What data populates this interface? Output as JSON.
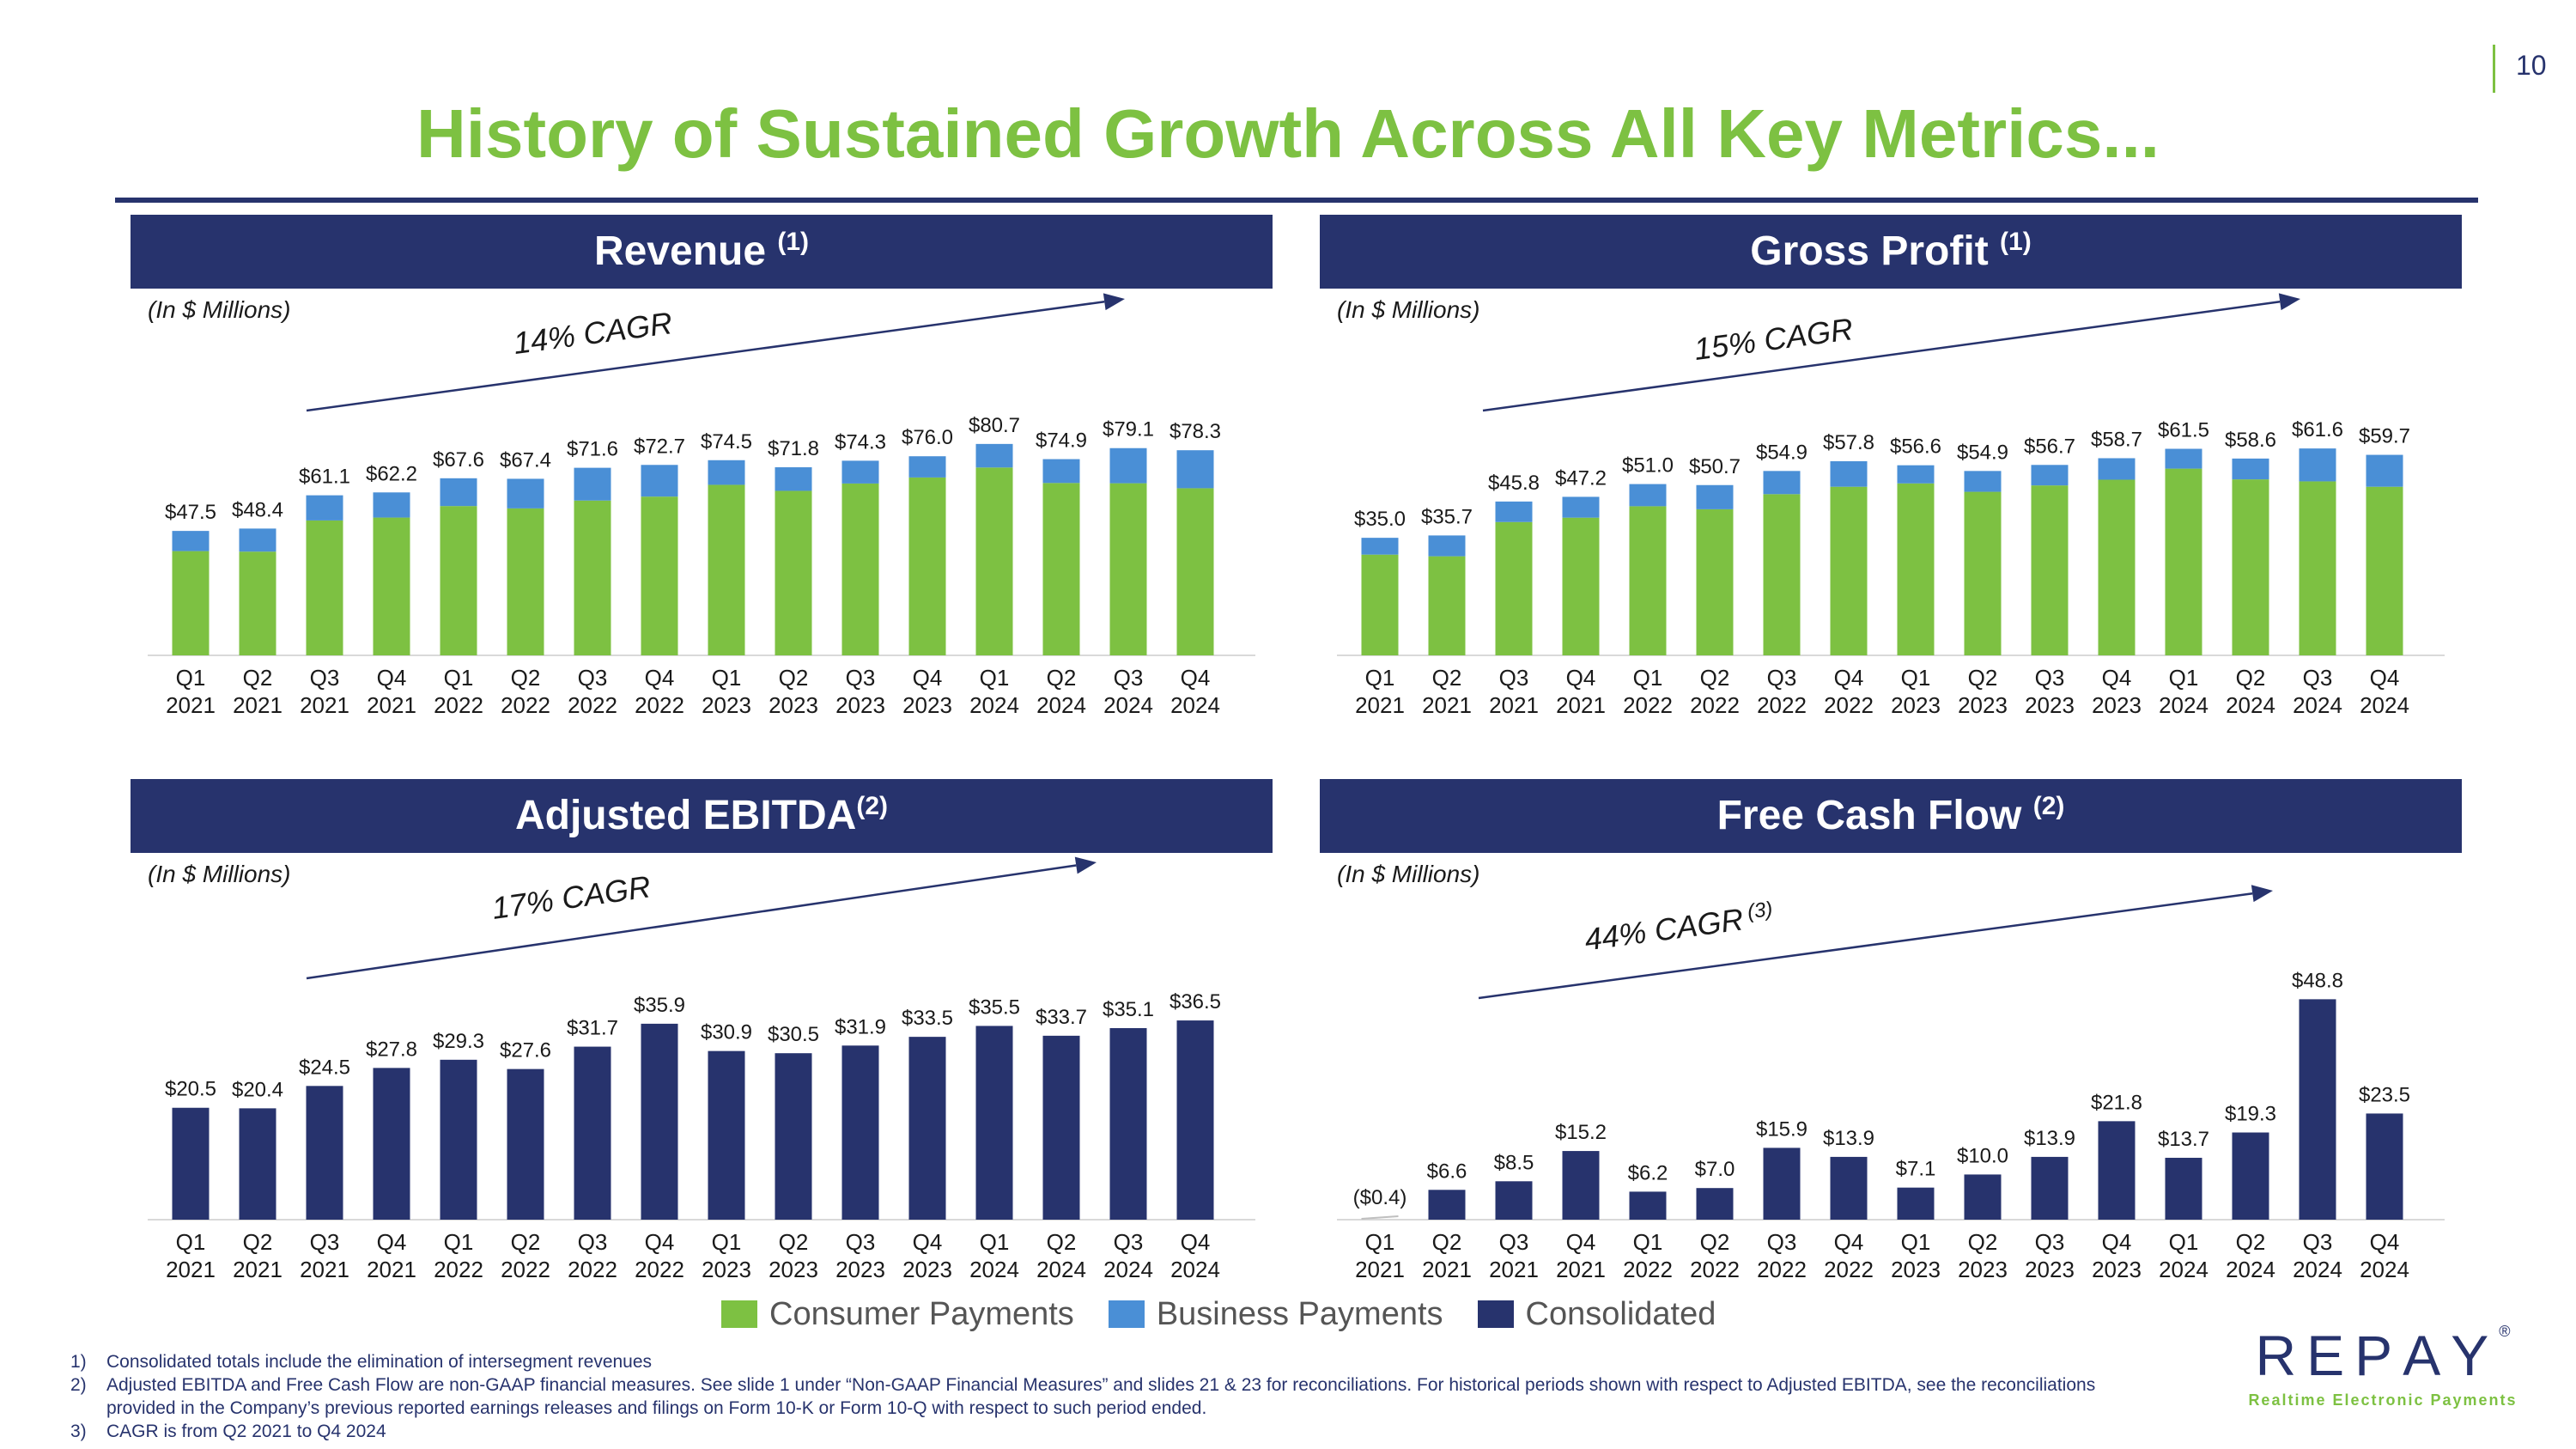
{
  "page_number": "10",
  "title": "History of Sustained Growth Across All Key Metrics...",
  "colors": {
    "consumer": "#7dc142",
    "business": "#4a8fd6",
    "consolidated": "#27336d",
    "header_bg": "#27336d",
    "title": "#7dc142"
  },
  "legend": {
    "consumer": "Consumer Payments",
    "business": "Business Payments",
    "consolidated": "Consolidated"
  },
  "footnotes": [
    {
      "num": "1)",
      "text": "Consolidated totals include the elimination of intersegment revenues"
    },
    {
      "num": "2)",
      "text": "Adjusted EBITDA and Free Cash Flow are non-GAAP financial measures.  See slide 1 under “Non-GAAP Financial Measures” and slides 21 & 23 for reconciliations. For historical periods shown with respect to Adjusted EBITDA, see the reconciliations provided in the Company’s previous reported earnings releases and filings on Form 10-K or Form 10-Q with respect to such period ended."
    },
    {
      "num": "3)",
      "text": "CAGR is from Q2 2021 to Q4 2024"
    }
  ],
  "logo": {
    "letters": [
      "R",
      "E",
      "P",
      "A",
      "Y"
    ],
    "registered": "®",
    "tagline": "Realtime Electronic Payments"
  },
  "chart_data": [
    {
      "id": "revenue",
      "type": "bar",
      "stacked": true,
      "title": "Revenue",
      "title_note": "(1)",
      "units_label": "(In $ Millions)",
      "cagr_label": "14% CAGR",
      "cagr_note": "",
      "categories": [
        "Q1 2021",
        "Q2 2021",
        "Q3 2021",
        "Q4 2021",
        "Q1 2022",
        "Q2 2022",
        "Q3 2022",
        "Q4 2022",
        "Q1 2023",
        "Q2 2023",
        "Q3 2023",
        "Q4 2023",
        "Q1 2024",
        "Q2 2024",
        "Q3 2024",
        "Q4 2024"
      ],
      "series": [
        {
          "name": "Consumer Payments",
          "values": [
            39.8,
            39.6,
            51.5,
            52.6,
            57.0,
            56.1,
            59.1,
            60.6,
            65.1,
            62.8,
            65.6,
            67.9,
            71.7,
            65.8,
            65.7,
            63.8
          ]
        },
        {
          "name": "Business Payments",
          "values": [
            7.7,
            8.8,
            9.6,
            9.6,
            10.6,
            11.3,
            12.5,
            12.1,
            9.4,
            9.0,
            8.7,
            8.1,
            9.0,
            9.1,
            13.4,
            14.5
          ]
        }
      ],
      "totals": [
        47.5,
        48.4,
        61.1,
        62.2,
        67.6,
        67.4,
        71.6,
        72.7,
        74.5,
        71.8,
        74.3,
        76.0,
        80.7,
        74.9,
        79.1,
        78.3
      ],
      "labels": [
        "$47.5",
        "$48.4",
        "$61.1",
        "$62.2",
        "$67.6",
        "$67.4",
        "$71.6",
        "$72.7",
        "$74.5",
        "$71.8",
        "$74.3",
        "$76.0",
        "$80.7",
        "$74.9",
        "$79.1",
        "$78.3"
      ],
      "ylim": [
        0,
        100
      ]
    },
    {
      "id": "gross-profit",
      "type": "bar",
      "stacked": true,
      "title": "Gross Profit",
      "title_note": "(1)",
      "units_label": "(In $ Millions)",
      "cagr_label": "15% CAGR",
      "cagr_note": "",
      "categories": [
        "Q1 2021",
        "Q2 2021",
        "Q3 2021",
        "Q4 2021",
        "Q1 2022",
        "Q2 2022",
        "Q3 2022",
        "Q4 2022",
        "Q1 2023",
        "Q2 2023",
        "Q3 2023",
        "Q4 2023",
        "Q1 2024",
        "Q2 2024",
        "Q3 2024",
        "Q4 2024"
      ],
      "series": [
        {
          "name": "Consumer Payments",
          "values": [
            30.0,
            29.5,
            39.7,
            41.0,
            44.4,
            43.5,
            48.0,
            50.2,
            51.2,
            48.7,
            50.6,
            52.3,
            55.6,
            52.4,
            51.8,
            50.2
          ]
        },
        {
          "name": "Business Payments",
          "values": [
            5.0,
            6.2,
            6.1,
            6.2,
            6.6,
            7.2,
            6.9,
            7.6,
            5.4,
            6.2,
            6.1,
            6.4,
            5.9,
            6.2,
            9.8,
            9.5
          ]
        }
      ],
      "totals": [
        35.0,
        35.7,
        45.8,
        47.2,
        51.0,
        50.7,
        54.9,
        57.8,
        56.6,
        54.9,
        56.7,
        58.7,
        61.5,
        58.6,
        61.6,
        59.7
      ],
      "labels": [
        "$35.0",
        "$35.7",
        "$45.8",
        "$47.2",
        "$51.0",
        "$50.7",
        "$54.9",
        "$57.8",
        "$56.6",
        "$54.9",
        "$56.7",
        "$58.7",
        "$61.5",
        "$58.6",
        "$61.6",
        "$59.7"
      ],
      "ylim": [
        0,
        78
      ]
    },
    {
      "id": "adjusted-ebitda",
      "type": "bar",
      "stacked": false,
      "title": "Adjusted EBITDA",
      "title_note": "(2)",
      "units_label": "(In $ Millions)",
      "cagr_label": "17% CAGR",
      "cagr_note": "",
      "categories": [
        "Q1 2021",
        "Q2 2021",
        "Q3 2021",
        "Q4 2021",
        "Q1 2022",
        "Q2 2022",
        "Q3 2022",
        "Q4 2022",
        "Q1 2023",
        "Q2 2023",
        "Q3 2023",
        "Q4 2023",
        "Q1 2024",
        "Q2 2024",
        "Q3 2024",
        "Q4 2024"
      ],
      "series": [
        {
          "name": "Consolidated",
          "values": [
            20.5,
            20.4,
            24.5,
            27.8,
            29.3,
            27.6,
            31.7,
            35.9,
            30.9,
            30.5,
            31.9,
            33.5,
            35.5,
            33.7,
            35.1,
            36.5
          ]
        }
      ],
      "labels": [
        "$20.5",
        "$20.4",
        "$24.5",
        "$27.8",
        "$29.3",
        "$27.6",
        "$31.7",
        "$35.9",
        "$30.9",
        "$30.5",
        "$31.9",
        "$33.5",
        "$35.5",
        "$33.7",
        "$35.1",
        "$36.5"
      ],
      "ylim": [
        0,
        48
      ]
    },
    {
      "id": "free-cash-flow",
      "type": "bar",
      "stacked": false,
      "title": "Free Cash Flow",
      "title_note": "(2)",
      "units_label": "(In $ Millions)",
      "cagr_label": "44% CAGR",
      "cagr_note": "(3)",
      "categories": [
        "Q1 2021",
        "Q2 2021",
        "Q3 2021",
        "Q4 2021",
        "Q1 2022",
        "Q2 2022",
        "Q3 2022",
        "Q4 2022",
        "Q1 2023",
        "Q2 2023",
        "Q3 2023",
        "Q4 2023",
        "Q1 2024",
        "Q2 2024",
        "Q3 2024",
        "Q4 2024"
      ],
      "series": [
        {
          "name": "Consolidated",
          "values": [
            -0.4,
            6.6,
            8.5,
            15.2,
            6.2,
            7.0,
            15.9,
            13.9,
            7.1,
            10.0,
            13.9,
            21.8,
            13.7,
            19.3,
            48.8,
            23.5
          ]
        }
      ],
      "labels": [
        "($0.4)",
        "$6.6",
        "$8.5",
        "$15.2",
        "$6.2",
        "$7.0",
        "$15.9",
        "$13.9",
        "$7.1",
        "$10.0",
        "$13.9",
        "$21.8",
        "$13.7",
        "$19.3",
        "$48.8",
        "$23.5"
      ],
      "ylim": [
        0,
        58
      ]
    }
  ]
}
